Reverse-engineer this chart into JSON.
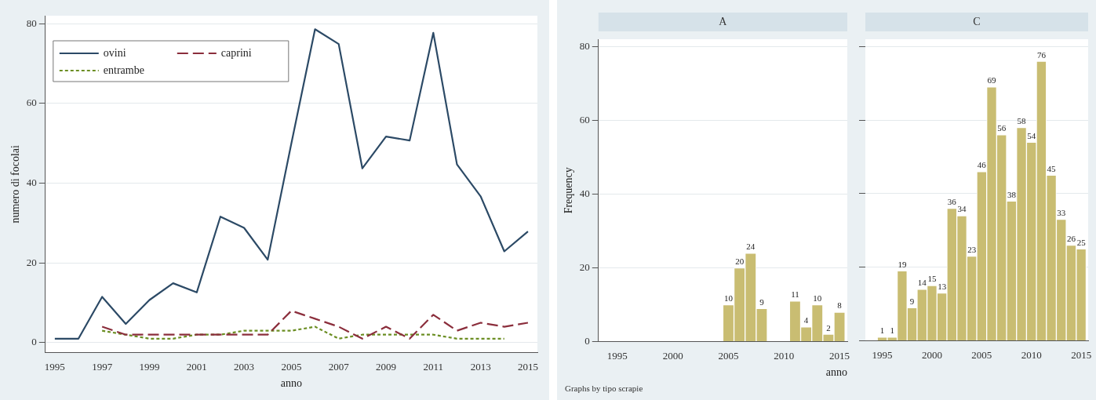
{
  "chart_data": [
    {
      "type": "line",
      "xlabel": "anno",
      "ylabel": "numero di focolai",
      "x": [
        1995,
        1996,
        1997,
        1998,
        1999,
        2000,
        2001,
        2002,
        2003,
        2004,
        2005,
        2006,
        2007,
        2008,
        2009,
        2010,
        2011,
        2012,
        2013,
        2014,
        2015
      ],
      "series": [
        {
          "name": "ovini",
          "color": "#2c4a66",
          "line_style": "solid",
          "values": [
            1,
            1,
            11.5,
            4.7,
            10.7,
            14.9,
            12.6,
            31.6,
            28.8,
            20.8,
            50,
            78.6,
            74.9,
            43.7,
            51.7,
            50.7,
            77.7,
            44.7,
            36.7,
            22.9,
            27.9
          ]
        },
        {
          "name": "caprini",
          "color": "#8b2e3c",
          "line_style": "dashed",
          "values": [
            null,
            null,
            4,
            2,
            2,
            2,
            2,
            2,
            2,
            2,
            8,
            6,
            4,
            1,
            4,
            1,
            7,
            3,
            5,
            4,
            5
          ]
        },
        {
          "name": "entrambe",
          "color": "#6b8e23",
          "line_style": "dotted",
          "values": [
            null,
            null,
            3,
            2,
            1,
            1,
            2,
            2,
            3,
            3,
            3,
            4,
            1,
            2,
            2,
            2,
            2,
            1,
            1,
            1,
            null
          ]
        }
      ],
      "xlim": [
        1994.6,
        2015.4
      ],
      "xticks": [
        1995,
        1997,
        1999,
        2001,
        2003,
        2005,
        2007,
        2009,
        2011,
        2013,
        2015
      ],
      "ylim": [
        -2.5,
        82
      ],
      "yticks": [
        0,
        20,
        40,
        60,
        80
      ],
      "grid": "y",
      "legend": "top left",
      "marker": "none"
    },
    {
      "type": "histogram",
      "title": "A",
      "xlabel": "anno",
      "ylabel": "Frequency",
      "annotations": [
        "Graphs by tipo scrapie"
      ],
      "bins": [
        2004.5,
        2005.5,
        2006.5,
        2007.5,
        2008.5,
        2009.5,
        2010.5,
        2011.5,
        2012.5,
        2013.5,
        2014.5,
        2015.5
      ],
      "values": [
        10,
        20,
        24,
        9,
        null,
        null,
        11,
        4,
        10,
        2,
        8
      ],
      "color": "#c9bd72",
      "xlim": [
        1993.3,
        2015.7
      ],
      "xticks": [
        1995,
        2000,
        2005,
        2010,
        2015
      ],
      "ylim": [
        0,
        82
      ],
      "yticks": [
        0,
        20,
        40,
        60,
        80
      ],
      "grid": "y",
      "data_labels": true
    },
    {
      "type": "histogram",
      "title": "C",
      "bins": [
        1994.5,
        1995.5,
        1996.5,
        1997.5,
        1998.5,
        1999.5,
        2000.5,
        2001.5,
        2002.5,
        2003.5,
        2004.5,
        2005.5,
        2006.5,
        2007.5,
        2008.5,
        2009.5,
        2010.5,
        2011.5,
        2012.5,
        2013.5,
        2014.5,
        2015.5
      ],
      "values": [
        1,
        1,
        19,
        9,
        14,
        15,
        13,
        36,
        34,
        23,
        46,
        69,
        56,
        38,
        58,
        54,
        76,
        45,
        33,
        26,
        25
      ],
      "color": "#c9bd72",
      "xlim": [
        1993.3,
        2015.7
      ],
      "xticks": [
        1995,
        2000,
        2005,
        2010,
        2015
      ],
      "ylim": [
        0,
        82
      ],
      "yticks": [
        0,
        20,
        40,
        60,
        80
      ],
      "grid": "y",
      "data_labels": true,
      "tick_labels": "x"
    }
  ]
}
